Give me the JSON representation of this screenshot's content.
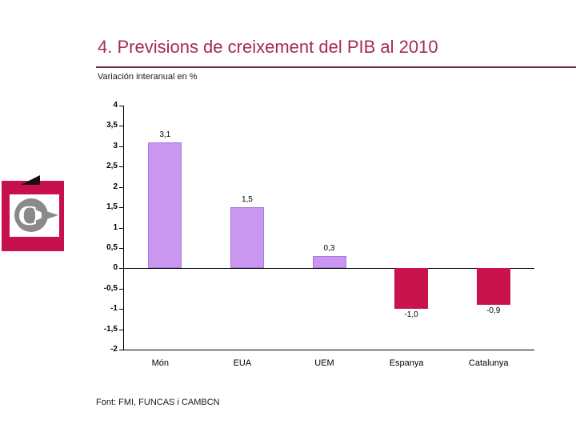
{
  "slide": {
    "title": "4. Previsions de creixement del PIB al 2010",
    "subtitle": "Variación interanual en %",
    "source": "Font: FMI, FUNCAS i CAMBCN",
    "title_color": "#A62A5A",
    "rule_color": "#6E2C52"
  },
  "logo": {
    "letter": "C",
    "red": "#C8104E",
    "gray": "#8A8A8A",
    "dark": "#1C0B12"
  },
  "chart_data": {
    "type": "bar",
    "title": "",
    "xlabel": "",
    "ylabel": "",
    "categories": [
      "Món",
      "EUA",
      "UEM",
      "Espanya",
      "Catalunya"
    ],
    "values": [
      3.1,
      1.5,
      0.3,
      -1.0,
      -0.9
    ],
    "value_labels": [
      "3,1",
      "1,5",
      "0,3",
      "-1,0",
      "-0,9"
    ],
    "ylim": [
      -2,
      4
    ],
    "ytick_step": 0.5,
    "ytick_labels": [
      "4",
      "3,5",
      "3",
      "2,5",
      "2",
      "1,5",
      "1",
      "0,5",
      "0",
      "-0,5",
      "-1",
      "-1,5",
      "-2"
    ],
    "grid": false,
    "legend": "none",
    "positive_color": "#C996F0",
    "negative_color": "#C8134C",
    "axis_color": "#000000"
  }
}
